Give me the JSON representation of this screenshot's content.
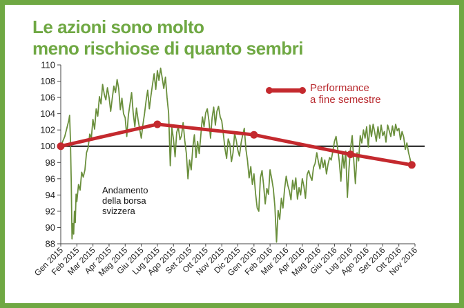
{
  "title": {
    "line1": "Le azioni sono molto",
    "line2": "meno rischiose di quanto sembri"
  },
  "colors": {
    "frame": "#6fa843",
    "title": "#6fa843",
    "index_line": "#6a8f3c",
    "performance": "#c4292e",
    "baseline": "#111111"
  },
  "chart_data": {
    "type": "line",
    "title": "Le azioni sono molto meno rischiose di quanto sembri",
    "ylim": [
      88,
      110
    ],
    "yticks": [
      88,
      90,
      92,
      94,
      96,
      98,
      100,
      102,
      104,
      106,
      108,
      110
    ],
    "xlim": [
      0,
      22
    ],
    "x_labels": [
      "Gen 2015",
      "Feb 2015",
      "Mar 2015",
      "Apr 2015",
      "Mag 2015",
      "Giu 2015",
      "Lug 2015",
      "Ago 2015",
      "Set 2015",
      "Ott 2015",
      "Nov 2015",
      "Dic 2015",
      "Gen 2016",
      "Feb 2016",
      "Mar 2016",
      "Apr 2016",
      "Mag 2016",
      "Giu 2016",
      "Lug 2016",
      "Ago 2016",
      "Set 2016",
      "Ott 2016",
      "Nov 2016"
    ],
    "baseline": 100,
    "series": [
      {
        "name": "Andamento della borsa svizzera",
        "x": [
          0,
          0.25,
          0.5,
          0.55,
          0.6,
          0.65,
          0.7,
          0.75,
          0.8,
          0.85,
          0.9,
          0.95,
          1.0,
          1.1,
          1.2,
          1.3,
          1.4,
          1.5,
          1.6,
          1.7,
          1.8,
          1.9,
          2.0,
          2.1,
          2.2,
          2.3,
          2.4,
          2.5,
          2.6,
          2.7,
          2.8,
          2.9,
          3.0,
          3.1,
          3.2,
          3.3,
          3.4,
          3.5,
          3.6,
          3.7,
          3.8,
          3.9,
          4.0,
          4.1,
          4.2,
          4.3,
          4.4,
          4.5,
          4.6,
          4.7,
          4.8,
          4.9,
          5.0,
          5.1,
          5.2,
          5.3,
          5.4,
          5.5,
          5.6,
          5.7,
          5.8,
          5.9,
          6.0,
          6.1,
          6.2,
          6.3,
          6.4,
          6.5,
          6.6,
          6.7,
          6.8,
          6.9,
          7.0,
          7.1,
          7.2,
          7.3,
          7.4,
          7.5,
          7.6,
          7.7,
          7.8,
          7.9,
          8.0,
          8.1,
          8.2,
          8.3,
          8.4,
          8.5,
          8.6,
          8.7,
          8.8,
          8.9,
          9.0,
          9.1,
          9.2,
          9.3,
          9.4,
          9.5,
          9.6,
          9.7,
          9.8,
          9.9,
          10.0,
          10.1,
          10.2,
          10.3,
          10.4,
          10.5,
          10.6,
          10.7,
          10.8,
          10.9,
          11.0,
          11.1,
          11.2,
          11.3,
          11.4,
          11.5,
          11.6,
          11.7,
          11.8,
          11.9,
          12.0,
          12.1,
          12.2,
          12.3,
          12.4,
          12.5,
          12.6,
          12.7,
          12.8,
          12.9,
          13.0,
          13.1,
          13.2,
          13.3,
          13.4,
          13.5,
          13.6,
          13.7,
          13.8,
          13.9,
          14.0,
          14.1,
          14.2,
          14.3,
          14.4,
          14.5,
          14.6,
          14.7,
          14.8,
          14.9,
          15.0,
          15.1,
          15.2,
          15.3,
          15.4,
          15.5,
          15.6,
          15.7,
          15.8,
          15.9,
          16.0,
          16.1,
          16.2,
          16.3,
          16.4,
          16.5,
          16.6,
          16.7,
          16.8,
          16.9,
          17.0,
          17.1,
          17.2,
          17.3,
          17.4,
          17.5,
          17.6,
          17.7,
          17.8,
          17.9,
          18.0,
          18.1,
          18.2,
          18.3,
          18.4,
          18.5,
          18.6,
          18.7,
          18.8,
          18.9,
          19.0,
          19.1,
          19.2,
          19.3,
          19.4,
          19.5,
          19.6,
          19.7,
          19.8,
          19.9,
          20.0,
          20.1,
          20.2,
          20.3,
          20.4,
          20.5,
          20.6,
          20.7,
          20.8,
          20.9,
          21.0,
          21.1,
          21.2,
          21.3,
          21.4,
          21.5,
          21.6,
          21.7,
          21.8
        ],
        "values": [
          100,
          101.2,
          103.2,
          103.8,
          100.8,
          95.5,
          88.6,
          90.5,
          89.2,
          92.0,
          90.6,
          94.1,
          93.2,
          95.3,
          94.6,
          96.8,
          96.2,
          97.1,
          99.2,
          99.8,
          101.5,
          101.0,
          103.3,
          102.1,
          104.6,
          103.7,
          106.1,
          105.2,
          107.6,
          106.4,
          105.7,
          107.2,
          106.0,
          104.3,
          105.9,
          107.4,
          106.6,
          108.2,
          107.1,
          104.5,
          105.9,
          104.0,
          103.5,
          101.2,
          103.8,
          105.2,
          106.6,
          104.1,
          102.4,
          104.7,
          103.3,
          102.1,
          101.0,
          102.6,
          104.0,
          105.6,
          106.9,
          104.6,
          106.2,
          107.6,
          108.9,
          107.0,
          109.3,
          108.1,
          109.6,
          108.4,
          107.1,
          108.5,
          106.0,
          104.1,
          97.6,
          102.3,
          100.9,
          98.7,
          101.7,
          102.4,
          100.8,
          101.3,
          102.9,
          100.7,
          99.1,
          96.0,
          98.3,
          97.1,
          99.8,
          101.4,
          98.6,
          100.6,
          99.1,
          101.4,
          103.6,
          102.4,
          104.1,
          104.6,
          103.2,
          101.0,
          103.5,
          104.8,
          102.6,
          104.3,
          104.9,
          103.6,
          103.1,
          101.5,
          99.7,
          98.5,
          100.9,
          100.3,
          98.1,
          99.2,
          101.6,
          100.7,
          99.5,
          98.8,
          100.4,
          101.4,
          102.2,
          99.6,
          98.2,
          96.1,
          97.5,
          95.3,
          96.6,
          94.2,
          92.4,
          92.0,
          96.1,
          97.0,
          95.2,
          92.9,
          94.8,
          94.1,
          97.1,
          96.0,
          94.8,
          92.6,
          88.2,
          92.1,
          91.0,
          93.6,
          92.4,
          94.7,
          96.3,
          95.2,
          94.5,
          93.4,
          95.8,
          94.7,
          96.1,
          93.5,
          94.9,
          94.0,
          96.0,
          95.1,
          93.6,
          96.5,
          97.0,
          96.3,
          95.8,
          97.4,
          97.9,
          99.2,
          98.1,
          97.2,
          98.6,
          97.4,
          98.3,
          96.6,
          97.8,
          98.6,
          98.3,
          99.4,
          100.6,
          101.2,
          99.7,
          98.1,
          95.7,
          99.1,
          97.3,
          99.4,
          93.7,
          97.2,
          99.8,
          101.3,
          98.2,
          95.4,
          99.2,
          98.2,
          101.3,
          100.4,
          102.0,
          101.0,
          102.4,
          99.9,
          102.6,
          101.2,
          102.7,
          101.7,
          100.6,
          102.4,
          101.0,
          102.6,
          101.3,
          101.8,
          100.5,
          102.6,
          101.9,
          101.2,
          102.5,
          101.3,
          102.7,
          101.9,
          102.2,
          100.8,
          101.8,
          101.1,
          99.6,
          100.4,
          99.2,
          98.4,
          97.6
        ]
      },
      {
        "name": "Performance a fine semestre",
        "x": [
          0,
          6,
          12,
          18,
          21.8
        ],
        "values": [
          100,
          102.7,
          101.4,
          99.0,
          97.7
        ]
      }
    ],
    "legend": "top-right",
    "annotations": [
      "Andamento della borsa svizzera"
    ]
  },
  "legend": {
    "line1": "Performance",
    "line2": "a fine semestre"
  },
  "annotation": {
    "line1": "Andamento",
    "line2": "della borsa",
    "line3": "svizzera"
  }
}
